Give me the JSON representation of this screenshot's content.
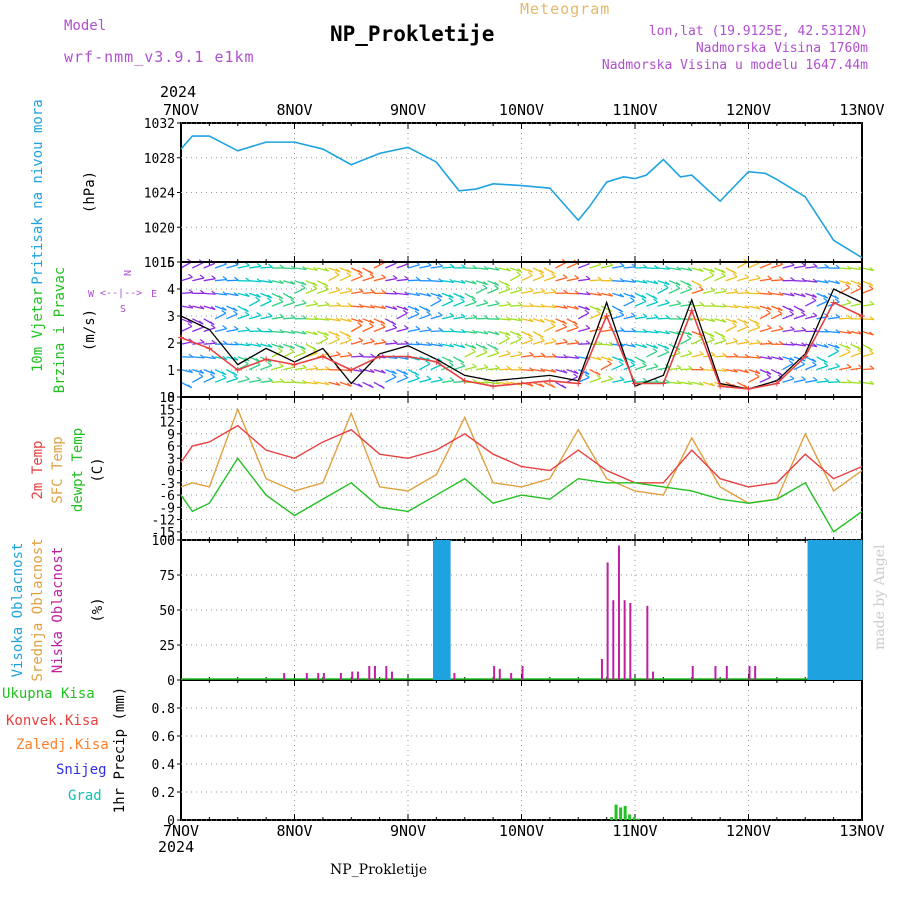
{
  "header": {
    "model_label": "Model",
    "model_name": "wrf-nmm_v3.9.1 e1km",
    "title": "NP_Prokletije",
    "subtitle": "Meteogram",
    "lonlat": "lon,lat (19.9125E, 42.5312N)",
    "altitude": "Nadmorska Visina 1760m",
    "model_altitude": "Nadmorska Visina u modelu 1647.44m"
  },
  "year": "2024",
  "footer": "NP_Prokletije",
  "credit": "made by Angel",
  "colors": {
    "pressure": "#1fa3e0",
    "temp2m": "#e84040",
    "sfc": "#e0a040",
    "dewpt": "#22c022",
    "high_cloud": "#1fa3e0",
    "mid_cloud": "#e0a040",
    "low_cloud": "#c020a0",
    "precip_total": "#22c022",
    "precip_conv": "#e84040",
    "wind_speed": "#e84040",
    "wind_gust": "#000000",
    "ylabel": "#000000",
    "purple": "#b04fd0"
  },
  "chart_data": [
    {
      "type": "line",
      "name": "pressure",
      "labels": [
        "Pritisak na nivou mora",
        "(hPa)"
      ],
      "x_ticks": [
        "7NOV",
        "8NOV",
        "9NOV",
        "10NOV",
        "11NOV",
        "12NOV",
        "13NOV"
      ],
      "ylim": [
        1016,
        1032
      ],
      "yticks": [
        "1016",
        "1020",
        "1024",
        "1028",
        "1032"
      ],
      "x": [
        0,
        0.1,
        0.25,
        0.5,
        0.75,
        1.0,
        1.25,
        1.5,
        1.75,
        2.0,
        2.25,
        2.45,
        2.6,
        2.75,
        3.0,
        3.25,
        3.5,
        3.6,
        3.75,
        3.9,
        4.0,
        4.1,
        4.25,
        4.4,
        4.5,
        4.75,
        5.0,
        5.15,
        5.25,
        5.5,
        5.75,
        6.0
      ],
      "series": [
        {
          "name": "",
          "values": [
            1029,
            1030.5,
            1030.5,
            1028.8,
            1029.8,
            1029.8,
            1029,
            1027.2,
            1028.5,
            1029.2,
            1027.5,
            1024.2,
            1024.4,
            1025,
            1024.8,
            1024.5,
            1020.8,
            1022.4,
            1025.2,
            1025.8,
            1025.6,
            1026,
            1027.8,
            1025.8,
            1026,
            1023,
            1026.4,
            1026.2,
            1025.5,
            1023.5,
            1018.5,
            1016.5
          ]
        }
      ]
    },
    {
      "type": "line",
      "name": "wind",
      "labels": [
        "10m Vjetar",
        "Brzina i Pravac",
        "(m/s)"
      ],
      "compass": [
        "N",
        "<--|-->",
        "S",
        "W",
        "E"
      ],
      "ylim": [
        0,
        5
      ],
      "yticks": [
        "0",
        "1",
        "2",
        "3",
        "4",
        "5"
      ],
      "x": [
        0,
        0.25,
        0.5,
        0.75,
        1.0,
        1.25,
        1.5,
        1.75,
        2.0,
        2.25,
        2.5,
        2.75,
        3.0,
        3.25,
        3.5,
        3.75,
        4.0,
        4.25,
        4.5,
        4.75,
        5.0,
        5.25,
        5.5,
        5.75,
        6.0
      ],
      "series": [
        {
          "name": "",
          "values": [
            2.2,
            1.8,
            1.0,
            1.4,
            1.2,
            1.5,
            1.0,
            1.5,
            1.5,
            1.3,
            0.6,
            0.4,
            0.5,
            0.6,
            0.5,
            3.0,
            0.5,
            0.5,
            3.2,
            0.4,
            0.3,
            0.5,
            1.5,
            3.5,
            3.0
          ]
        },
        {
          "name": "",
          "values": [
            3.0,
            2.5,
            1.2,
            1.8,
            1.3,
            1.8,
            0.5,
            1.6,
            1.9,
            1.4,
            0.8,
            0.6,
            0.7,
            0.8,
            0.6,
            3.5,
            0.4,
            0.8,
            3.6,
            0.5,
            0.3,
            0.6,
            1.6,
            4.0,
            3.5
          ]
        }
      ],
      "arrow_colors": [
        "#8a2be2",
        "#1e90ff",
        "#00c8c8",
        "#30d080",
        "#a0e020",
        "#f0c020",
        "#ff6020"
      ]
    },
    {
      "type": "line",
      "name": "temperature",
      "labels": [
        "2m Temp",
        "SFC Temp",
        "dewpt Temp",
        "(C)"
      ],
      "ylim": [
        -17,
        18
      ],
      "yticks": [
        "-15",
        "-12",
        "-9",
        "-6",
        "-3",
        "0",
        "3",
        "6",
        "9",
        "12",
        "15",
        "18"
      ],
      "x": [
        0,
        0.1,
        0.25,
        0.5,
        0.75,
        1.0,
        1.25,
        1.5,
        1.75,
        2.0,
        2.25,
        2.5,
        2.75,
        3.0,
        3.25,
        3.5,
        3.75,
        4.0,
        4.25,
        4.5,
        4.75,
        5.0,
        5.25,
        5.5,
        5.75,
        6.0
      ],
      "series": [
        {
          "name": "",
          "values": [
            2,
            6,
            7,
            11,
            5,
            3,
            7,
            10,
            4,
            3,
            5,
            9,
            4,
            1,
            0,
            5,
            0,
            -3,
            -3,
            5,
            -2,
            -4,
            -3,
            4,
            -2,
            1
          ]
        },
        {
          "name": "",
          "values": [
            -4,
            -3,
            -4,
            15,
            -2,
            -5,
            -3,
            14,
            -4,
            -5,
            -1,
            13,
            -3,
            -4,
            -2,
            10,
            -2,
            -5,
            -6,
            8,
            -4,
            -8,
            -7,
            9,
            -5,
            0
          ]
        },
        {
          "name": "",
          "values": [
            -6,
            -10,
            -8,
            3,
            -6,
            -11,
            -7,
            -3,
            -9,
            -10,
            -6,
            -2,
            -8,
            -6,
            -7,
            -2,
            -3,
            -3,
            -4,
            -5,
            -7,
            -8,
            -7,
            -3,
            -15,
            -10
          ]
        }
      ]
    },
    {
      "type": "bar",
      "name": "cloud",
      "labels": [
        "Visoka Oblacnost",
        "Srednja Oblacnost",
        "Niska Oblacnost",
        "(%)"
      ],
      "ylim": [
        0,
        100
      ],
      "yticks": [
        "0",
        "25",
        "50",
        "75",
        "100"
      ],
      "high_x": [
        2.22,
        2.25,
        2.28,
        2.31,
        2.34,
        5.52,
        5.55,
        5.58,
        5.61,
        5.64,
        5.67,
        5.7,
        5.73,
        5.76,
        5.79,
        5.82,
        5.85,
        5.88,
        5.91,
        5.94,
        5.97
      ],
      "high_v": [
        100,
        100,
        100,
        100,
        100,
        100,
        100,
        100,
        100,
        100,
        100,
        100,
        100,
        100,
        100,
        100,
        100,
        100,
        100,
        100,
        100
      ],
      "low_x": [
        0.9,
        1.1,
        1.2,
        1.25,
        1.4,
        1.5,
        1.55,
        1.65,
        1.7,
        1.8,
        1.85,
        2.4,
        2.75,
        2.8,
        2.9,
        3.0,
        3.7,
        3.75,
        3.8,
        3.85,
        3.9,
        3.95,
        4.1,
        4.15,
        5.0,
        5.05,
        4.5,
        4.7,
        4.8
      ],
      "low_v": [
        5,
        5,
        5,
        5,
        5,
        6,
        6,
        10,
        10,
        10,
        6,
        5,
        10,
        8,
        5,
        10,
        15,
        84,
        57,
        96,
        57,
        55,
        53,
        6,
        10,
        10,
        10,
        10,
        10
      ]
    },
    {
      "type": "bar",
      "name": "precip",
      "labels": [
        "Ukupna Kisa",
        "Konvek.Kisa",
        "Zaledj.Kisa",
        "Snijeg",
        "Grad",
        "1hr Precip (mm)"
      ],
      "ylim": [
        0,
        1.0
      ],
      "yticks": [
        "0",
        "0.2",
        "0.4",
        "0.6",
        "0.8"
      ],
      "x": [
        3.78,
        3.82,
        3.86,
        3.9,
        3.94,
        3.98,
        4.02
      ],
      "values": [
        0.02,
        0.11,
        0.09,
        0.1,
        0.04,
        0.02,
        0.01
      ]
    }
  ]
}
